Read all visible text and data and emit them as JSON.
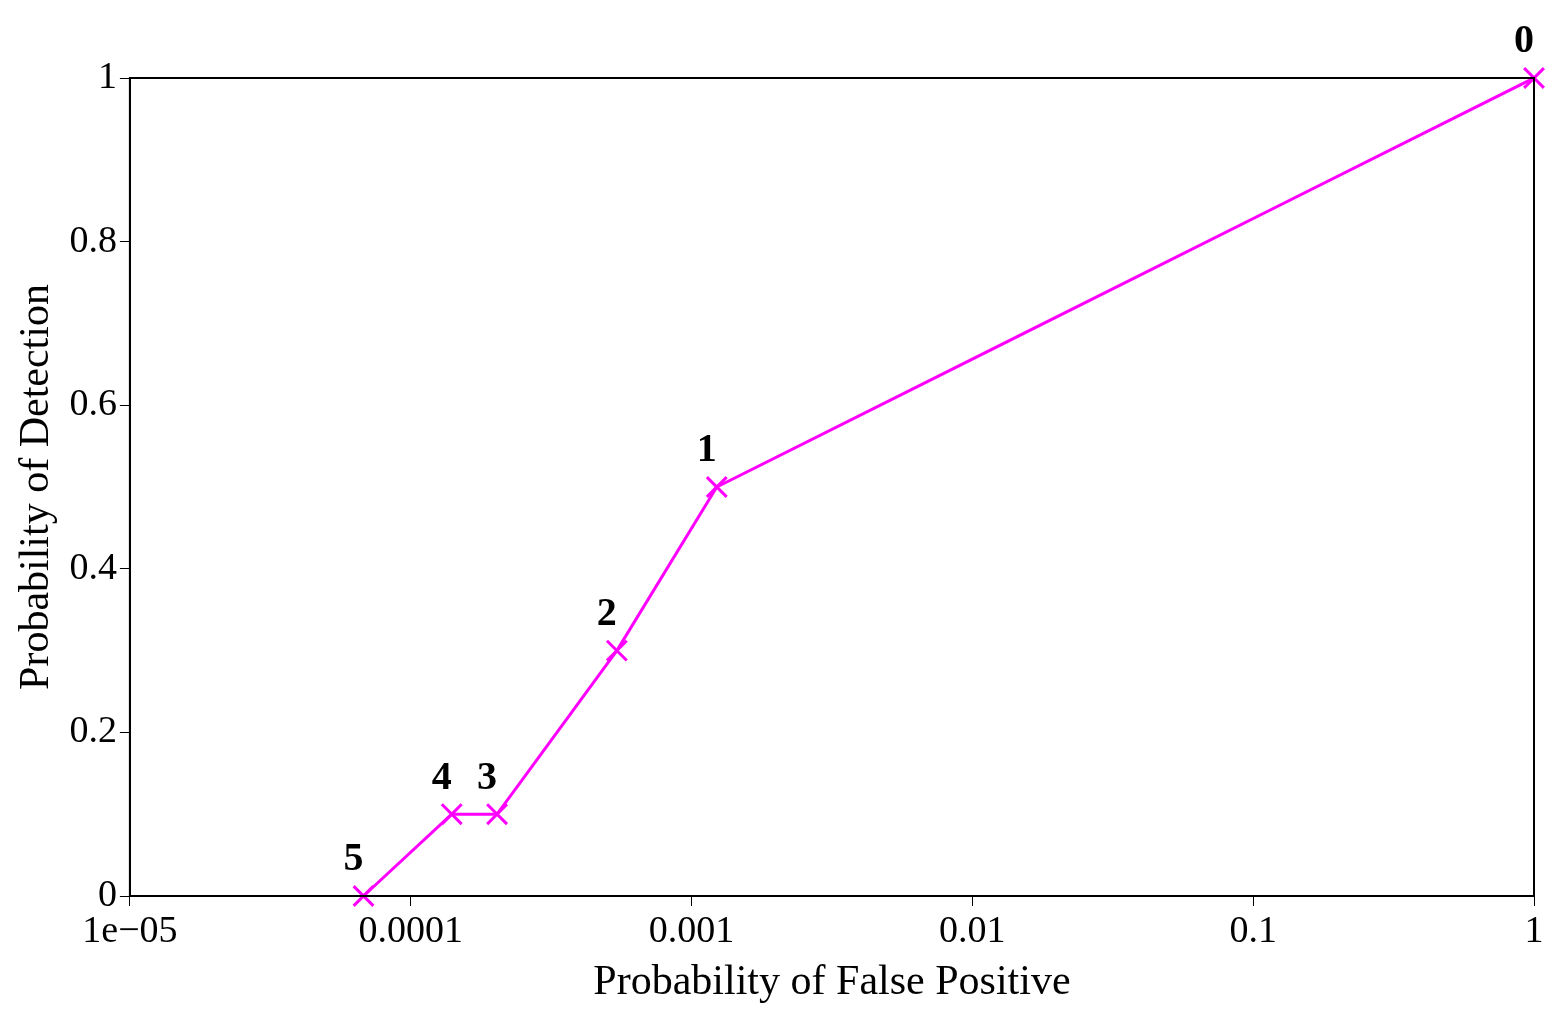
{
  "chart_data": {
    "type": "line",
    "xlabel": "Probability of False Positive",
    "ylabel": "Probability of Detection",
    "log": "x",
    "x": [
      1,
      0.00123,
      0.000542,
      0.000203,
      0.00014,
      6.79e-05
    ],
    "series": [
      {
        "color": "#ff00ff",
        "values": [
          1,
          0.5,
          0.3,
          0.1,
          0.1,
          0
        ]
      }
    ],
    "xlim": [
      1e-05,
      1
    ],
    "xticks": [
      {
        "value": 1e-05,
        "label": "1e−05"
      },
      {
        "value": 0.0001,
        "label": "0.0001"
      },
      {
        "value": 0.001,
        "label": "0.001"
      },
      {
        "value": 0.01,
        "label": "0.01"
      },
      {
        "value": 0.1,
        "label": "0.1"
      },
      1
    ],
    "ylim": [
      0,
      1
    ],
    "yticks": [
      0,
      0.2,
      0.4,
      0.6,
      0.8,
      1
    ],
    "grid": false,
    "legend": false,
    "marker": "cross",
    "line_style": "solid",
    "annotations": [
      {
        "text": "0",
        "x": 1,
        "y": 1
      },
      {
        "text": "1",
        "x": 0.00123,
        "y": 0.5
      },
      {
        "text": "2",
        "x": 0.000542,
        "y": 0.3
      },
      {
        "text": "3",
        "x": 0.000203,
        "y": 0.1
      },
      {
        "text": "4",
        "x": 0.00014,
        "y": 0.1
      },
      {
        "text": "5",
        "x": 6.79e-05,
        "y": 0
      }
    ]
  }
}
